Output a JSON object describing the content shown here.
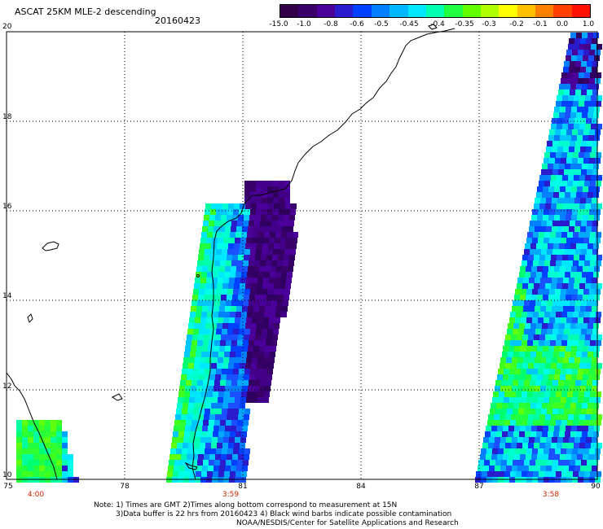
{
  "header": {
    "title": "ASCAT 25KM MLE-2 descending",
    "date": "20160423"
  },
  "colorbar": {
    "labels": [
      "-15.0",
      "-1.0",
      "-0.8",
      "-0.6",
      "-0.5",
      "-0.45",
      "-0.4",
      "-0.35",
      "-0.3",
      "-0.2",
      "-0.1",
      "0.0",
      "1.0"
    ],
    "colors": [
      "#300048",
      "#3a006a",
      "#4a0099",
      "#2a1ccc",
      "#0040ff",
      "#0080ff",
      "#00b8ff",
      "#00e8ff",
      "#00ffb0",
      "#20ff40",
      "#60ff00",
      "#b0ff00",
      "#ffff00",
      "#ffc000",
      "#ff8000",
      "#ff4000",
      "#ff1000"
    ]
  },
  "axes": {
    "lat_labels": [
      "20",
      "18",
      "16",
      "14",
      "12",
      "10"
    ],
    "lon_labels": [
      "75",
      "78",
      "81",
      "84",
      "87",
      "90"
    ],
    "time_labels": [
      "4:00",
      "3:59",
      "3:58"
    ]
  },
  "notes": {
    "line1": "Note: 1) Times are GMT 2)Times along bottom correspond to measurement at 15N",
    "line2": "3)Data buffer is 22 hrs from 20160423 4) Black wind barbs indicate possible contamination",
    "line3": "NOAA/NESDIS/Center for Satellite Applications and Research"
  }
}
